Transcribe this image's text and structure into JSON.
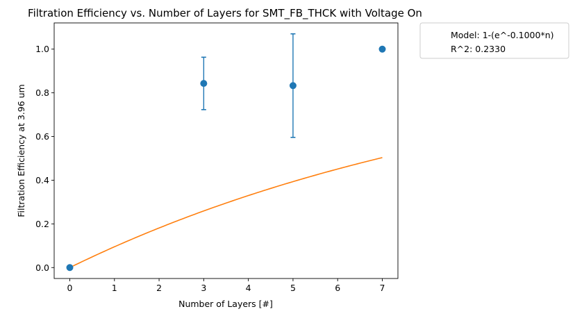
{
  "chart_data": {
    "type": "scatter",
    "title": "Filtration Efficiency vs. Number of Layers for SMT_FB_THCK with Voltage On",
    "xlabel": "Number of Layers [#]",
    "ylabel": "Filtration Efficiency at 3.96 um",
    "xlim": [
      -0.35,
      7.35
    ],
    "ylim": [
      -0.05,
      1.12
    ],
    "xticks": [
      0,
      1,
      2,
      3,
      4,
      5,
      6,
      7
    ],
    "yticks": [
      0.0,
      0.2,
      0.4,
      0.6,
      0.8,
      1.0
    ],
    "xtick_labels": [
      "0",
      "1",
      "2",
      "3",
      "4",
      "5",
      "6",
      "7"
    ],
    "ytick_labels": [
      "0.0",
      "0.2",
      "0.4",
      "0.6",
      "0.8",
      "1.0"
    ],
    "series": [
      {
        "kind": "points_with_errorbars",
        "color": "#1f77b4",
        "points": [
          {
            "x": 0,
            "y": 0.0,
            "yerr": null
          },
          {
            "x": 3,
            "y": 0.843,
            "yerr": 0.12
          },
          {
            "x": 5,
            "y": 0.833,
            "yerr": 0.237
          },
          {
            "x": 7,
            "y": 1.0,
            "yerr": null
          }
        ]
      },
      {
        "kind": "fit_line",
        "color": "#ff7f0e",
        "model": "1-(e^-kn)",
        "k": 0.1,
        "x_range": [
          0,
          7
        ]
      }
    ],
    "legend": {
      "position": "outside-top-right",
      "entries": [
        "Model: 1-(e^-0.1000*n)",
        "R^2: 0.2330"
      ]
    },
    "grid": false
  }
}
